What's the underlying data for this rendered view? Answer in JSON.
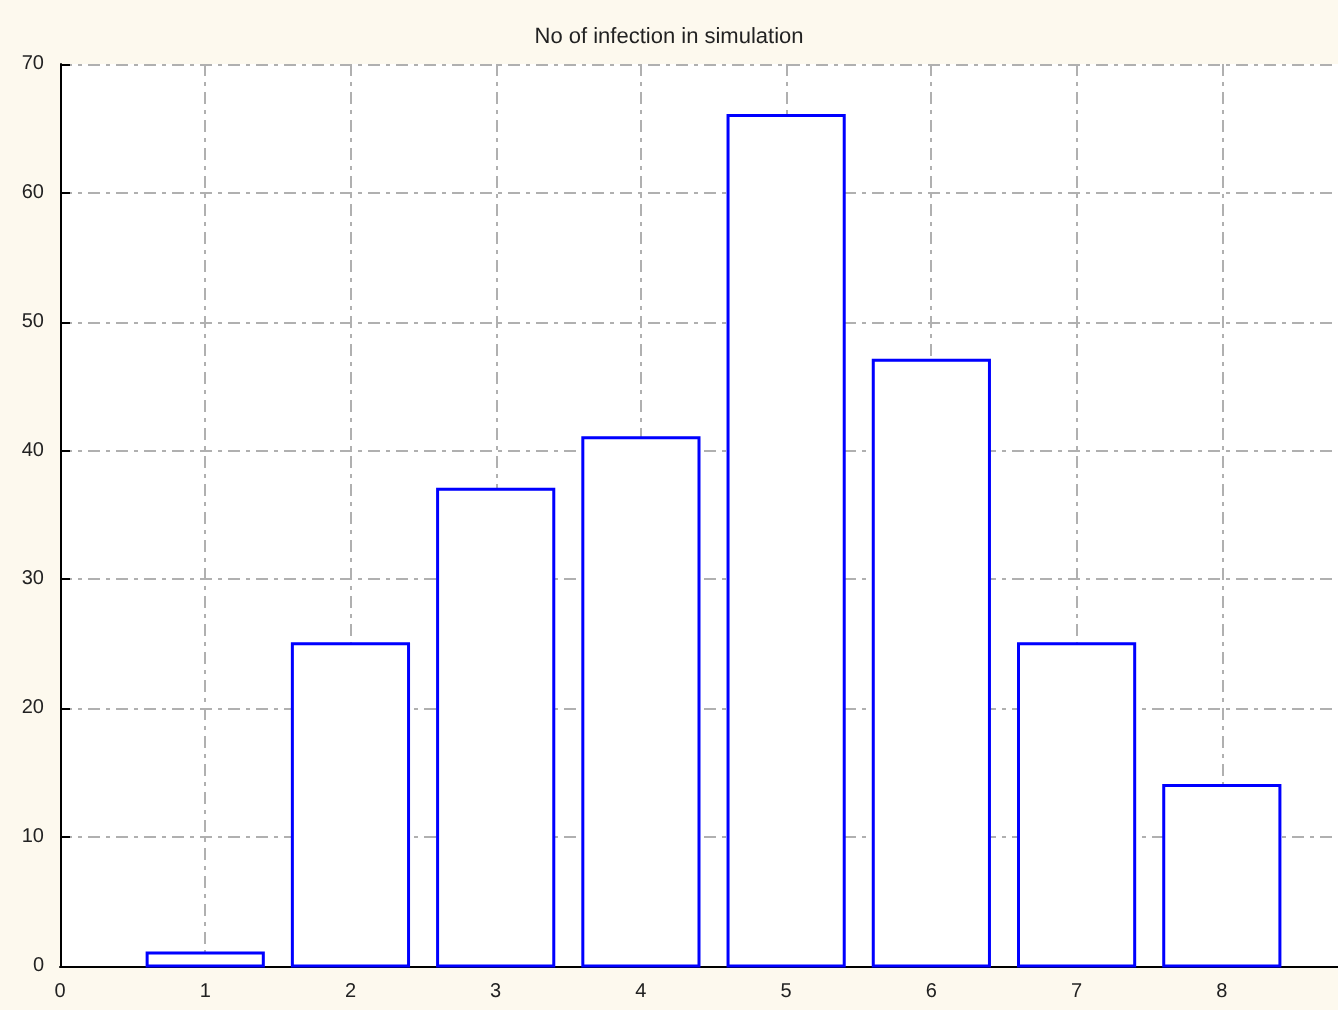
{
  "chart_data": {
    "type": "bar",
    "title": "No of infection in simulation",
    "x": [
      1,
      2,
      3,
      4,
      5,
      6,
      7,
      8
    ],
    "values": [
      1,
      25,
      37,
      41,
      66,
      47,
      25,
      14
    ],
    "color": "#0000ff",
    "xlim": [
      0,
      8.8
    ],
    "xticks": [
      0,
      1,
      2,
      3,
      4,
      5,
      6,
      7,
      8
    ],
    "ylim": [
      0,
      70
    ],
    "yticks": [
      0,
      10,
      20,
      30,
      40,
      50,
      60,
      70
    ],
    "grid": true
  }
}
